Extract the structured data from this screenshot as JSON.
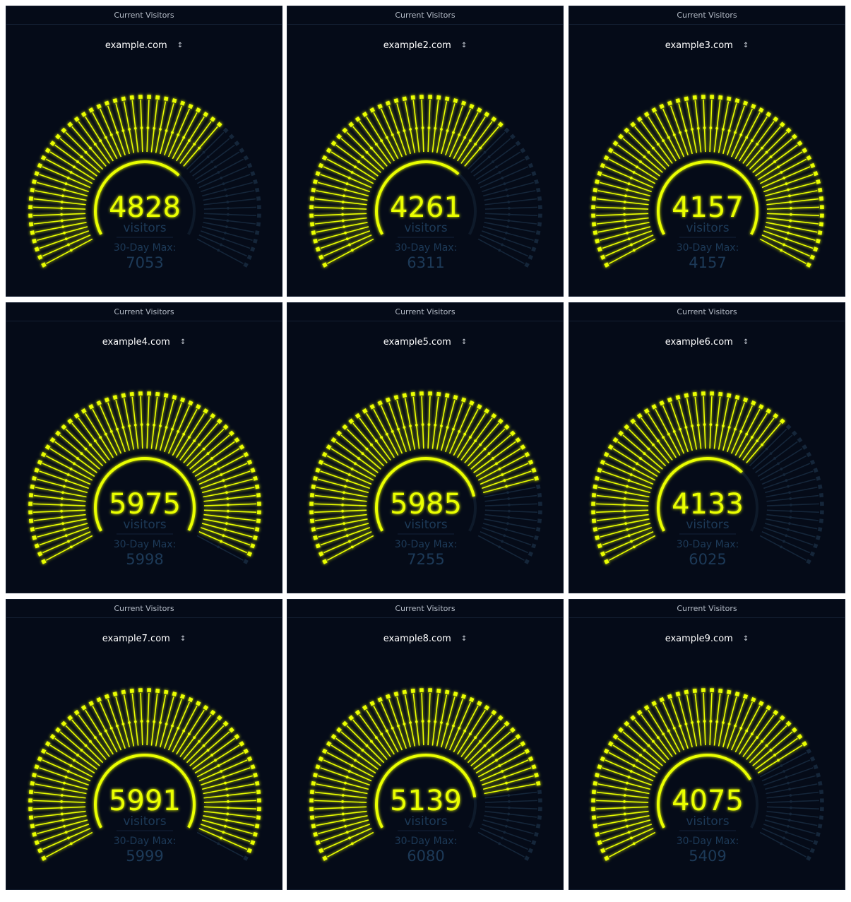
{
  "panels": [
    {
      "title": "Current Visitors",
      "site": "example.com",
      "visitors": 4828,
      "visitors_label": "visitors",
      "max_label": "30-Day Max:",
      "max": 7053
    },
    {
      "title": "Current Visitors",
      "site": "example2.com",
      "visitors": 4261,
      "visitors_label": "visitors",
      "max_label": "30-Day Max:",
      "max": 6311
    },
    {
      "title": "Current Visitors",
      "site": "example3.com",
      "visitors": 4157,
      "visitors_label": "visitors",
      "max_label": "30-Day Max:",
      "max": 4157
    },
    {
      "title": "Current Visitors",
      "site": "example4.com",
      "visitors": 5975,
      "visitors_label": "visitors",
      "max_label": "30-Day Max:",
      "max": 5998
    },
    {
      "title": "Current Visitors",
      "site": "example5.com",
      "visitors": 5985,
      "visitors_label": "visitors",
      "max_label": "30-Day Max:",
      "max": 7255
    },
    {
      "title": "Current Visitors",
      "site": "example6.com",
      "visitors": 4133,
      "visitors_label": "visitors",
      "max_label": "30-Day Max:",
      "max": 6025
    },
    {
      "title": "Current Visitors",
      "site": "example7.com",
      "visitors": 5991,
      "visitors_label": "visitors",
      "max_label": "30-Day Max:",
      "max": 5999
    },
    {
      "title": "Current Visitors",
      "site": "example8.com",
      "visitors": 5139,
      "visitors_label": "visitors",
      "max_label": "30-Day Max:",
      "max": 6080
    },
    {
      "title": "Current Visitors",
      "site": "example9.com",
      "visitors": 4075,
      "visitors_label": "visitors",
      "max_label": "30-Day Max:",
      "max": 5409
    }
  ],
  "icons": {
    "site_select": "chevron-up-down-icon"
  },
  "colors": {
    "active": "#eaff00",
    "inactive": "#15263a",
    "panel_bg": "#050b18",
    "muted_text": "#1d3a58"
  }
}
